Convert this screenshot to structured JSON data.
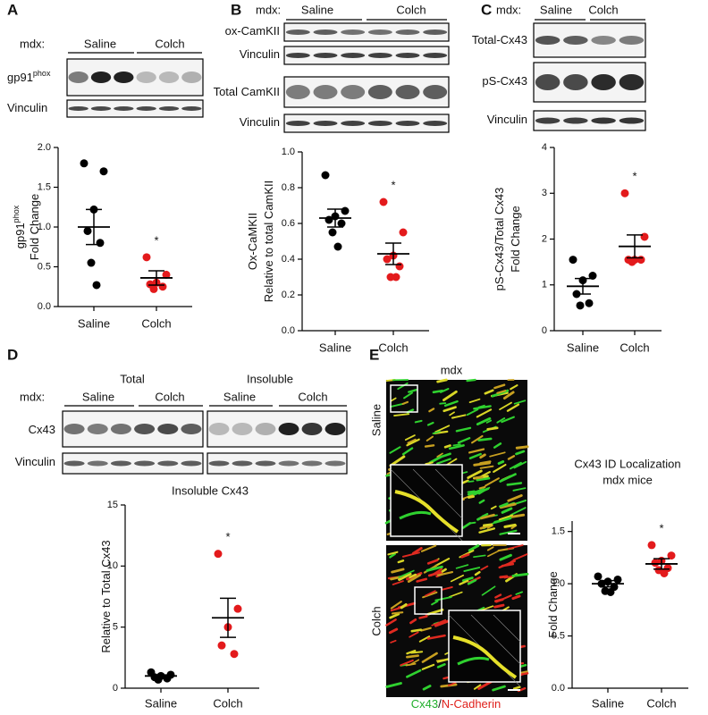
{
  "panels": [
    {
      "label": "A",
      "blot": {
        "mdx": "mdx:",
        "groups": [
          "Saline",
          "Colch"
        ],
        "rows": [
          [
            {
              "text": "gp91"
            },
            {
              "text": "phox",
              "sup": true
            }
          ],
          [
            {
              "text": "Vinculin"
            }
          ]
        ]
      }
    },
    {
      "label": "B",
      "blot": {
        "mdx": "mdx:",
        "groups": [
          "Saline",
          "Colch"
        ],
        "rows": [
          [
            {
              "text": "ox-CamKII"
            }
          ],
          [
            {
              "text": "Vinculin"
            }
          ],
          [
            {
              "text": "Total CamKII"
            }
          ],
          [
            {
              "text": "Vinculin"
            }
          ]
        ]
      }
    },
    {
      "label": "C",
      "blot": {
        "mdx": "mdx:",
        "groups": [
          "Saline",
          "Colch"
        ],
        "rows": [
          [
            {
              "text": "Total-Cx43"
            }
          ],
          [
            {
              "text": "pS-Cx43"
            }
          ],
          [
            {
              "text": "Vinculin"
            }
          ]
        ]
      }
    },
    {
      "label": "D",
      "blot": {
        "sections": [
          "Total",
          "Insoluble"
        ],
        "mdx": "mdx:",
        "groups": [
          "Saline",
          "Colch",
          "Saline",
          "Colch"
        ],
        "rows": [
          [
            {
              "text": "Cx43"
            }
          ],
          [
            {
              "text": "Vinculin"
            }
          ]
        ]
      }
    },
    {
      "label": "E",
      "image": {
        "title": "mdx",
        "rows": [
          "Saline",
          "Colch"
        ],
        "caption": [
          {
            "text": "Cx43",
            "color": "#1fae2a"
          },
          {
            "text": "/"
          },
          {
            "text": "N-Cadherin",
            "color": "#e0201b"
          }
        ]
      }
    }
  ],
  "chart_data": [
    {
      "type": "dot-plot",
      "y_label": [
        [
          {
            "text": "gp91"
          },
          {
            "text": "phox",
            "sup": true
          }
        ],
        [
          {
            "text": "Fold  Change"
          }
        ]
      ],
      "categories": [
        "Saline",
        "Colch"
      ],
      "colors": [
        "#000000",
        "#e31a1c"
      ],
      "points": [
        [
          1.8,
          1.7,
          1.22,
          0.95,
          0.8,
          0.55,
          0.27
        ],
        [
          0.62,
          0.4,
          0.3,
          0.28,
          0.25,
          0.22
        ]
      ],
      "means": [
        1.0,
        0.36
      ],
      "sems": [
        0.22,
        0.09
      ],
      "significance": "*",
      "ylim": [
        0,
        2
      ],
      "yticks": [
        {
          "value": 0,
          "label": "0.0"
        },
        {
          "value": 0.5,
          "label": "0.5"
        },
        {
          "value": 1,
          "label": "1.0"
        },
        {
          "value": 1.5,
          "label": "1.5"
        },
        {
          "value": 2,
          "label": "2.0"
        }
      ]
    },
    {
      "type": "dot-plot",
      "y_label": [
        [
          {
            "text": "Ox-CaMKII"
          }
        ],
        [
          {
            "text": "Relative to total  CamKII"
          }
        ]
      ],
      "categories": [
        "Saline",
        "Colch"
      ],
      "colors": [
        "#000000",
        "#e31a1c"
      ],
      "points": [
        [
          0.87,
          0.67,
          0.64,
          0.62,
          0.6,
          0.55,
          0.47
        ],
        [
          0.72,
          0.55,
          0.42,
          0.4,
          0.36,
          0.3,
          0.3
        ]
      ],
      "means": [
        0.63,
        0.43
      ],
      "sems": [
        0.05,
        0.06
      ],
      "significance": "*",
      "ylim": [
        0,
        1
      ],
      "yticks": [
        {
          "value": 0,
          "label": "0.0"
        },
        {
          "value": 0.2,
          "label": "0.2"
        },
        {
          "value": 0.4,
          "label": "0.4"
        },
        {
          "value": 0.6,
          "label": "0.6"
        },
        {
          "value": 0.8,
          "label": "0.8"
        },
        {
          "value": 1,
          "label": "1.0"
        }
      ]
    },
    {
      "type": "dot-plot",
      "y_label": [
        [
          {
            "text": "pS-Cx43/Total Cx43"
          }
        ],
        [
          {
            "text": "Fold Change"
          }
        ]
      ],
      "categories": [
        "Saline",
        "Colch"
      ],
      "colors": [
        "#000000",
        "#e31a1c"
      ],
      "points": [
        [
          1.55,
          1.2,
          1.1,
          0.8,
          0.6,
          0.55
        ],
        [
          3.0,
          2.05,
          1.55,
          1.55,
          1.55,
          1.5
        ]
      ],
      "means": [
        0.97,
        1.84
      ],
      "sems": [
        0.17,
        0.25
      ],
      "significance": "*",
      "ylim": [
        0,
        4
      ],
      "yticks": [
        0,
        1,
        2,
        3,
        4
      ]
    },
    {
      "type": "dot-plot",
      "title": [
        "Insoluble Cx43"
      ],
      "y_label": [
        [
          {
            "text": "Relative to Total  Cx43"
          }
        ]
      ],
      "categories": [
        "Saline",
        "Colch"
      ],
      "colors": [
        "#000000",
        "#e31a1c"
      ],
      "points": [
        [
          1.3,
          1.1,
          1.0,
          0.9,
          0.8,
          0.7
        ],
        [
          11.0,
          6.5,
          5.0,
          3.5,
          2.8
        ]
      ],
      "means": [
        1.0,
        5.76
      ],
      "sems": [
        0.09,
        1.6
      ],
      "significance": "*",
      "ylim": [
        0,
        15
      ],
      "yticks": [
        0,
        5,
        10,
        15
      ]
    },
    {
      "type": "dot-plot",
      "title": [
        "Cx43 ID  Localization",
        "mdx mice"
      ],
      "y_label": [
        [
          {
            "text": "Fold Change"
          }
        ]
      ],
      "categories": [
        "Saline",
        "Colch"
      ],
      "colors": [
        "#000000",
        "#e31a1c"
      ],
      "points": [
        [
          1.07,
          1.04,
          1.02,
          1.0,
          0.97,
          0.93,
          0.92
        ],
        [
          1.37,
          1.27,
          1.22,
          1.2,
          1.15,
          1.13,
          1.1
        ]
      ],
      "means": [
        1.0,
        1.19
      ],
      "sems": [
        0.03,
        0.05
      ],
      "significance": "*",
      "ylim": [
        0,
        1.6
      ],
      "yticks": [
        {
          "value": 0,
          "label": "0.0"
        },
        {
          "value": 0.5,
          "label": "0.5"
        },
        {
          "value": 1,
          "label": "1.0"
        },
        {
          "value": 1.5,
          "label": "1.5"
        }
      ]
    }
  ]
}
